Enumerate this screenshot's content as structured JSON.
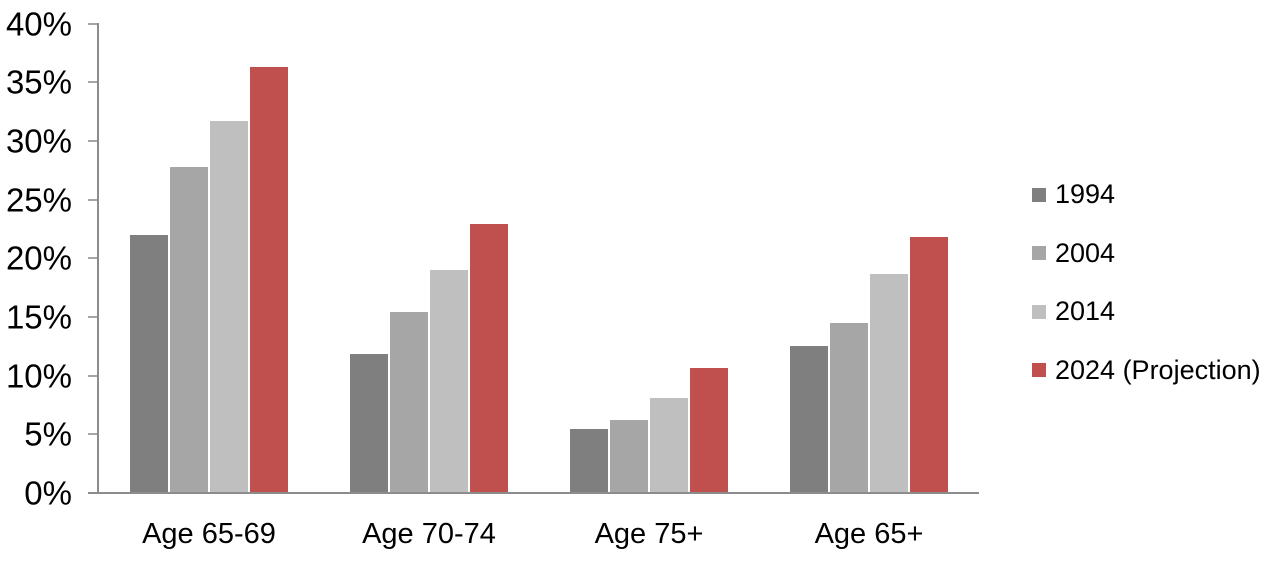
{
  "chart_data": {
    "type": "bar",
    "title": "",
    "xlabel": "",
    "ylabel": "",
    "categories": [
      "Age 65-69",
      "Age 70-74",
      "Age 75+",
      "Age 65+"
    ],
    "series": [
      {
        "name": "1994",
        "color": "#7f7f7f",
        "values": [
          21.9,
          11.8,
          5.4,
          12.4
        ]
      },
      {
        "name": "2004",
        "color": "#a6a6a6",
        "values": [
          27.7,
          15.3,
          6.1,
          14.4
        ]
      },
      {
        "name": "2014",
        "color": "#bfbfbf",
        "values": [
          31.6,
          18.9,
          8.0,
          18.6
        ]
      },
      {
        "name": "2024 (Projection)",
        "color": "#c0504d",
        "values": [
          36.2,
          22.8,
          10.6,
          21.7
        ]
      }
    ],
    "ylim": [
      0,
      40
    ],
    "ytick_step": 5,
    "ytick_labels": [
      "0%",
      "5%",
      "10%",
      "15%",
      "20%",
      "25%",
      "30%",
      "35%",
      "40%"
    ],
    "grid": false,
    "legend_position": "right",
    "axis_color": "#8c8c8c",
    "tick_color": "#a6a6a6"
  }
}
